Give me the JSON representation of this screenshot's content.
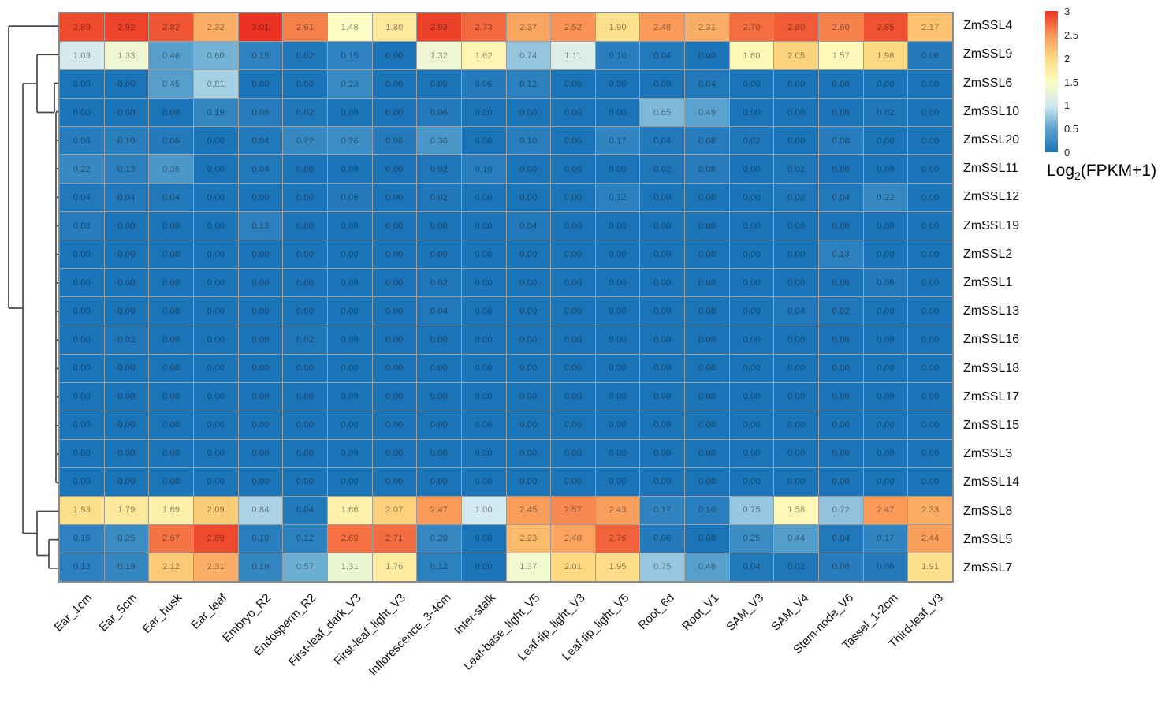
{
  "chart_data": {
    "type": "heatmap",
    "title": "",
    "columns": [
      "Ear_1cm",
      "Ear_5cm",
      "Ear_husk",
      "Ear_leaf",
      "Embryo_R2",
      "Endosperm_R2",
      "First-leaf_dark_V3",
      "First-leaf_light_V3",
      "Inflorescence_3-4cm",
      "Inter-stalk",
      "Leaf-base_light_V5",
      "Leaf-tip_light_V3",
      "Leaf-tip_light_V5",
      "Root_6d",
      "Root_V1",
      "SAM_V3",
      "SAM_V4",
      "Stem-node_V6",
      "Tassel_1-2cm",
      "Third-leaf_V3"
    ],
    "rows": [
      "ZmSSL4",
      "ZmSSL9",
      "ZmSSL6",
      "ZmSSL10",
      "ZmSSL20",
      "ZmSSL11",
      "ZmSSL12",
      "ZmSSL19",
      "ZmSSL2",
      "ZmSSL1",
      "ZmSSL13",
      "ZmSSL16",
      "ZmSSL18",
      "ZmSSL17",
      "ZmSSL15",
      "ZmSSL3",
      "ZmSSL14",
      "ZmSSL8",
      "ZmSSL5",
      "ZmSSL7"
    ],
    "values": [
      [
        2.89,
        2.92,
        2.82,
        2.32,
        3.01,
        2.61,
        1.48,
        1.8,
        2.93,
        2.73,
        2.37,
        2.52,
        1.9,
        2.48,
        2.31,
        2.7,
        2.8,
        2.6,
        2.85,
        2.17
      ],
      [
        1.03,
        1.33,
        0.46,
        0.6,
        0.15,
        0.02,
        0.15,
        0.0,
        1.32,
        1.62,
        0.74,
        1.11,
        0.1,
        0.04,
        0.0,
        1.6,
        2.05,
        1.57,
        1.98,
        0.06
      ],
      [
        0.0,
        0.0,
        0.45,
        0.81,
        0.0,
        0.0,
        0.23,
        0.0,
        0.0,
        0.06,
        0.12,
        0.0,
        0.0,
        0.0,
        0.04,
        0.0,
        0.0,
        0.0,
        0.0,
        0.0
      ],
      [
        0.0,
        0.0,
        0.0,
        0.19,
        0.08,
        0.02,
        0.0,
        0.0,
        0.06,
        0.0,
        0.0,
        0.0,
        0.0,
        0.65,
        0.49,
        0.0,
        0.0,
        0.0,
        0.02,
        0.0
      ],
      [
        0.08,
        0.1,
        0.06,
        0.0,
        0.04,
        0.22,
        0.26,
        0.06,
        0.36,
        0.0,
        0.1,
        0.0,
        0.17,
        0.04,
        0.08,
        0.02,
        0.0,
        0.08,
        0.0,
        0.0
      ],
      [
        0.22,
        0.13,
        0.36,
        0.0,
        0.04,
        0.0,
        0.0,
        0.0,
        0.02,
        0.1,
        0.0,
        0.0,
        0.0,
        0.02,
        0.08,
        0.0,
        0.02,
        0.0,
        0.0,
        0.0
      ],
      [
        0.04,
        0.04,
        0.04,
        0.0,
        0.0,
        0.0,
        0.06,
        0.0,
        0.02,
        0.0,
        0.0,
        0.0,
        0.12,
        0.0,
        0.0,
        0.0,
        0.02,
        0.04,
        0.22,
        0.0
      ],
      [
        0.08,
        0.0,
        0.0,
        0.0,
        0.13,
        0.0,
        0.0,
        0.0,
        0.0,
        0.0,
        0.04,
        0.0,
        0.0,
        0.0,
        0.0,
        0.0,
        0.0,
        0.0,
        0.0,
        0.0
      ],
      [
        0.0,
        0.0,
        0.0,
        0.0,
        0.0,
        0.0,
        0.0,
        0.0,
        0.0,
        0.0,
        0.0,
        0.0,
        0.0,
        0.0,
        0.0,
        0.0,
        0.0,
        0.13,
        0.0,
        0.0
      ],
      [
        0.0,
        0.0,
        0.0,
        0.0,
        0.0,
        0.0,
        0.0,
        0.0,
        0.02,
        0.0,
        0.0,
        0.0,
        0.0,
        0.0,
        0.0,
        0.0,
        0.0,
        0.0,
        0.06,
        0.0
      ],
      [
        0.0,
        0.0,
        0.0,
        0.0,
        0.0,
        0.0,
        0.0,
        0.0,
        0.04,
        0.0,
        0.0,
        0.0,
        0.0,
        0.0,
        0.0,
        0.0,
        0.04,
        0.02,
        0.0,
        0.0
      ],
      [
        0.0,
        0.02,
        0.0,
        0.0,
        0.0,
        0.02,
        0.0,
        0.0,
        0.0,
        0.0,
        0.0,
        0.0,
        0.0,
        0.0,
        0.0,
        0.0,
        0.0,
        0.0,
        0.0,
        0.0
      ],
      [
        0.0,
        0.0,
        0.0,
        0.0,
        0.0,
        0.0,
        0.0,
        0.0,
        0.0,
        0.0,
        0.0,
        0.0,
        0.0,
        0.0,
        0.0,
        0.0,
        0.0,
        0.0,
        0.0,
        0.0
      ],
      [
        0.0,
        0.0,
        0.0,
        0.0,
        0.0,
        0.0,
        0.0,
        0.0,
        0.0,
        0.0,
        0.0,
        0.0,
        0.0,
        0.0,
        0.0,
        0.0,
        0.0,
        0.0,
        0.0,
        0.0
      ],
      [
        0.0,
        0.0,
        0.0,
        0.0,
        0.0,
        0.0,
        0.0,
        0.0,
        0.0,
        0.0,
        0.0,
        0.0,
        0.0,
        0.0,
        0.0,
        0.0,
        0.0,
        0.0,
        0.0,
        0.0
      ],
      [
        0.0,
        0.0,
        0.0,
        0.0,
        0.0,
        0.0,
        0.0,
        0.0,
        0.0,
        0.0,
        0.0,
        0.0,
        0.0,
        0.0,
        0.0,
        0.0,
        0.0,
        0.0,
        0.0,
        0.0
      ],
      [
        0.0,
        0.0,
        0.0,
        0.0,
        0.0,
        0.0,
        0.0,
        0.0,
        0.0,
        0.0,
        0.0,
        0.0,
        0.0,
        0.0,
        0.0,
        0.0,
        0.0,
        0.0,
        0.0,
        0.0
      ],
      [
        1.93,
        1.79,
        1.69,
        2.09,
        0.84,
        0.04,
        1.66,
        2.07,
        2.47,
        1.0,
        2.45,
        2.57,
        2.43,
        0.17,
        0.1,
        0.75,
        1.58,
        0.72,
        2.47,
        2.33
      ],
      [
        0.15,
        0.25,
        2.67,
        2.89,
        0.1,
        0.12,
        2.69,
        2.71,
        0.2,
        0.0,
        2.23,
        2.4,
        2.76,
        0.06,
        0.0,
        0.25,
        0.44,
        0.04,
        0.17,
        2.44
      ],
      [
        0.13,
        0.19,
        2.12,
        2.31,
        0.19,
        0.57,
        1.31,
        1.76,
        0.12,
        0.0,
        1.37,
        2.01,
        1.95,
        0.75,
        0.46,
        0.04,
        0.02,
        0.08,
        0.06,
        1.91
      ]
    ],
    "value_format": "2-decimals",
    "row_dendrogram": "hierarchical clustering shown on left; ZmSSL4 splits first, then {ZmSSL9..ZmSSL14} chain, bottom cluster {ZmSSL8,{ZmSSL5,ZmSSL7}}",
    "legend": {
      "title_main": "Log",
      "title_sub": "2",
      "title_rest": "(FPKM+1)",
      "min": 0,
      "max": 3,
      "ticks": [
        3,
        2.5,
        2,
        1.5,
        1,
        0.5,
        0
      ],
      "position": "top-right"
    },
    "colorscale": [
      {
        "v": 0.0,
        "color": "#1C74B8"
      },
      {
        "v": 0.5,
        "color": "#5CA4CF"
      },
      {
        "v": 1.0,
        "color": "#D2E9F0"
      },
      {
        "v": 1.5,
        "color": "#FEFEC2"
      },
      {
        "v": 2.0,
        "color": "#FDD981"
      },
      {
        "v": 2.5,
        "color": "#FA9656"
      },
      {
        "v": 3.0,
        "color": "#EC3323"
      }
    ],
    "grid_line_color": "#9e9e9e",
    "dendrogram_line_color": "#4a4a4a",
    "axis_ranges": {
      "columns": 20,
      "rows": 20
    }
  }
}
